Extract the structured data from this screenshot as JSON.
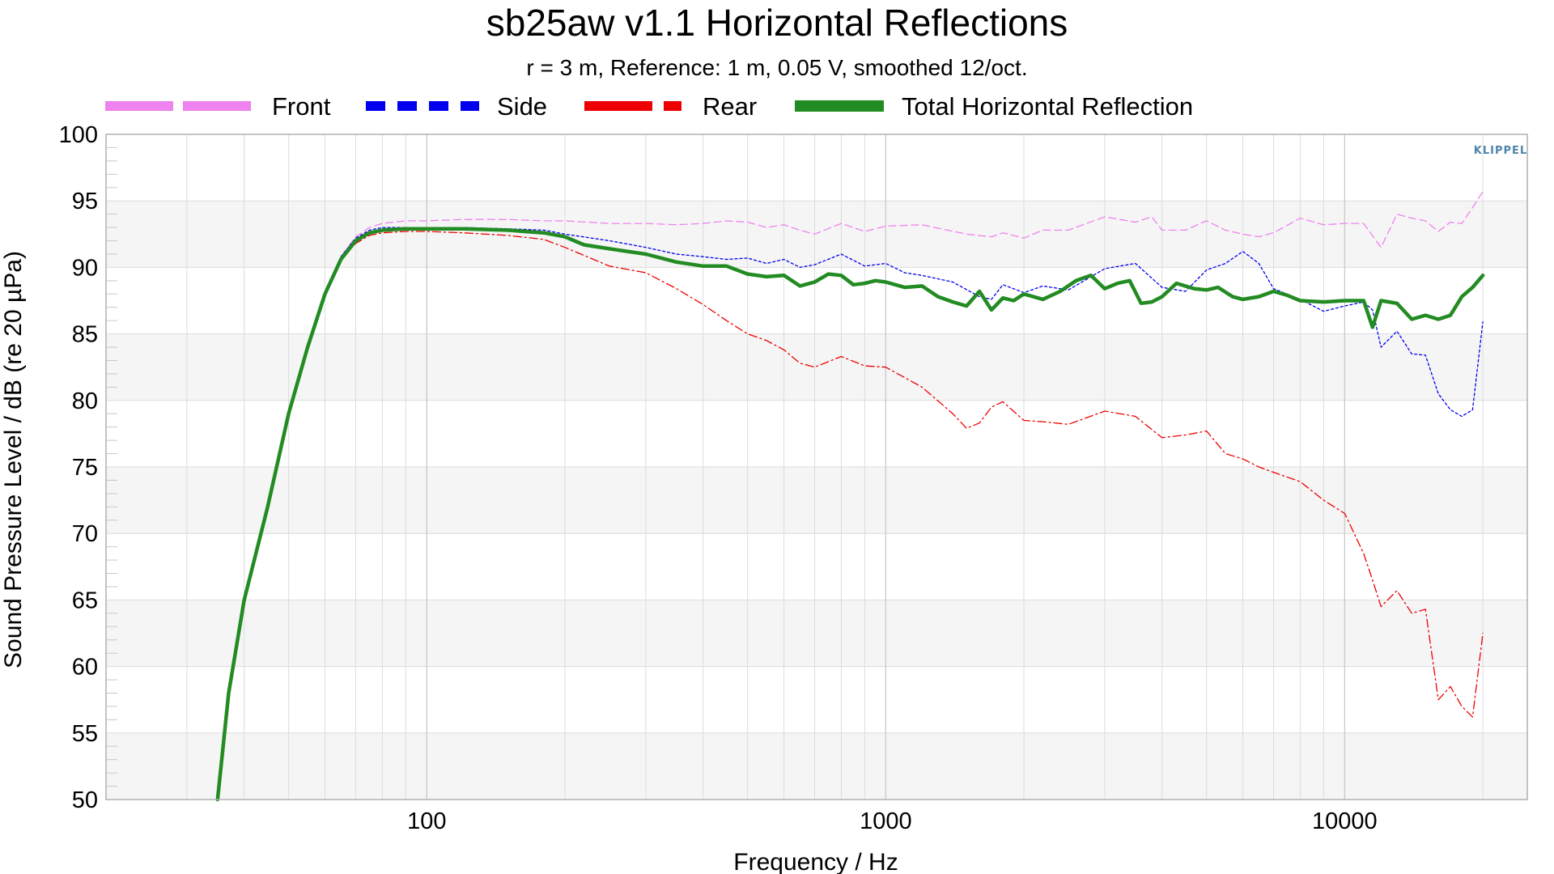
{
  "colors": {
    "front": "#ee82ee",
    "side": "#0000ee",
    "rear": "#ee0000",
    "total": "#228b22",
    "band": "#f5f5f5",
    "grid": "#dcdcdc",
    "brand": "#4f84a9"
  },
  "chart_data": {
    "type": "line",
    "title": "sb25aw v1.1 Horizontal Reflections",
    "subtitle": "r = 3 m,  Reference: 1 m, 0.05 V, smoothed 12/oct.",
    "xlabel": "Frequency / Hz",
    "ylabel": "Sound Pressure Level / dB (re 20 µPa)",
    "xscale": "log",
    "xlim": [
      20,
      25000
    ],
    "ylim": [
      50,
      100
    ],
    "x_ticks": [
      100,
      1000,
      10000
    ],
    "x_tick_labels": [
      "100",
      "1000",
      "10000"
    ],
    "y_ticks": [
      50,
      55,
      60,
      65,
      70,
      75,
      80,
      85,
      90,
      95,
      100
    ],
    "y_tick_labels": [
      "50",
      "55",
      "60",
      "65",
      "70",
      "75",
      "80",
      "85",
      "90",
      "95",
      "100"
    ],
    "grid": true,
    "legend_position": "top",
    "brand_label": "KLIPPEL",
    "series": [
      {
        "name": "Front",
        "style": "dashed",
        "color": "#ee82ee",
        "x": [
          37,
          40,
          45,
          50,
          55,
          60,
          65,
          70,
          75,
          80,
          90,
          100,
          120,
          150,
          180,
          200,
          250,
          300,
          350,
          400,
          450,
          500,
          550,
          600,
          650,
          700,
          800,
          900,
          1000,
          1200,
          1500,
          1700,
          1800,
          2000,
          2200,
          2500,
          3000,
          3500,
          3800,
          4000,
          4500,
          5000,
          5500,
          6000,
          6500,
          7000,
          8000,
          9000,
          10000,
          11000,
          12000,
          13000,
          14000,
          15000,
          16000,
          17000,
          18000,
          19000,
          20000
        ],
        "y": [
          58,
          65,
          72,
          79,
          84,
          88,
          90.8,
          92.3,
          93,
          93.3,
          93.5,
          93.5,
          93.6,
          93.6,
          93.5,
          93.5,
          93.3,
          93.3,
          93.2,
          93.3,
          93.5,
          93.4,
          93,
          93.2,
          92.8,
          92.5,
          93.3,
          92.7,
          93.1,
          93.2,
          92.5,
          92.3,
          92.6,
          92.2,
          92.8,
          92.8,
          93.8,
          93.4,
          93.8,
          92.8,
          92.8,
          93.5,
          92.8,
          92.5,
          92.3,
          92.6,
          93.7,
          93.2,
          93.3,
          93.3,
          91.5,
          94,
          93.7,
          93.5,
          92.7,
          93.4,
          93.3,
          94.5,
          95.7
        ]
      },
      {
        "name": "Side",
        "style": "dotted",
        "color": "#0000ee",
        "x": [
          37,
          40,
          45,
          50,
          55,
          60,
          65,
          70,
          75,
          80,
          90,
          100,
          120,
          150,
          180,
          200,
          250,
          300,
          350,
          400,
          450,
          500,
          550,
          600,
          650,
          700,
          800,
          900,
          1000,
          1100,
          1200,
          1400,
          1600,
          1700,
          1800,
          2000,
          2200,
          2500,
          3000,
          3500,
          4000,
          4500,
          5000,
          5500,
          6000,
          6500,
          7000,
          8000,
          9000,
          10000,
          11000,
          11500,
          12000,
          13000,
          14000,
          15000,
          16000,
          17000,
          18000,
          19000,
          20000
        ],
        "y": [
          58,
          65,
          72,
          79,
          84,
          88,
          90.8,
          92.2,
          92.8,
          93,
          93,
          93,
          93,
          92.9,
          92.8,
          92.5,
          92,
          91.5,
          91,
          90.8,
          90.6,
          90.7,
          90.3,
          90.6,
          90,
          90.2,
          91,
          90.1,
          90.3,
          89.6,
          89.4,
          88.9,
          87.8,
          87.6,
          88.7,
          88.1,
          88.6,
          88.3,
          89.9,
          90.3,
          88.5,
          88.2,
          89.8,
          90.3,
          91.2,
          90.3,
          88.4,
          87.6,
          86.7,
          87.1,
          87.4,
          86.8,
          84,
          85.2,
          83.5,
          83.4,
          80.5,
          79.3,
          78.8,
          79.3,
          85.9
        ]
      },
      {
        "name": "Rear",
        "style": "dashdot",
        "color": "#ee0000",
        "x": [
          37,
          40,
          45,
          50,
          55,
          60,
          65,
          70,
          75,
          80,
          90,
          100,
          120,
          150,
          180,
          200,
          250,
          300,
          350,
          400,
          450,
          500,
          550,
          600,
          650,
          700,
          800,
          900,
          1000,
          1200,
          1400,
          1500,
          1600,
          1700,
          1800,
          2000,
          2200,
          2500,
          3000,
          3500,
          4000,
          4500,
          5000,
          5500,
          6000,
          6500,
          7000,
          8000,
          9000,
          10000,
          11000,
          11500,
          12000,
          13000,
          14000,
          15000,
          16000,
          17000,
          18000,
          19000,
          20000
        ],
        "y": [
          58,
          65,
          72,
          79,
          84,
          88,
          90.6,
          91.8,
          92.4,
          92.6,
          92.7,
          92.7,
          92.6,
          92.4,
          92.1,
          91.5,
          90.1,
          89.6,
          88.4,
          87.2,
          86,
          85,
          84.5,
          83.8,
          82.8,
          82.5,
          83.3,
          82.6,
          82.5,
          81,
          79,
          77.9,
          78.3,
          79.5,
          79.9,
          78.5,
          78.4,
          78.2,
          79.2,
          78.8,
          77.2,
          77.4,
          77.7,
          76,
          75.6,
          75,
          74.6,
          73.9,
          72.5,
          71.5,
          68.5,
          66.5,
          64.5,
          65.7,
          64,
          64.3,
          57.5,
          58.5,
          57,
          56.2,
          62.5
        ]
      },
      {
        "name": "Total Horizontal Reflection",
        "style": "solid",
        "color": "#228b22",
        "x": [
          35,
          36,
          37,
          40,
          45,
          50,
          55,
          60,
          65,
          70,
          75,
          80,
          90,
          100,
          120,
          150,
          180,
          200,
          220,
          250,
          300,
          350,
          400,
          450,
          500,
          550,
          600,
          650,
          700,
          750,
          800,
          850,
          900,
          950,
          1000,
          1100,
          1200,
          1300,
          1400,
          1500,
          1600,
          1700,
          1800,
          1900,
          2000,
          2200,
          2400,
          2600,
          2800,
          3000,
          3200,
          3400,
          3600,
          3800,
          4000,
          4300,
          4700,
          5000,
          5300,
          5700,
          6000,
          6500,
          7000,
          7500,
          8000,
          9000,
          10000,
          11000,
          11500,
          12000,
          13000,
          14000,
          15000,
          16000,
          17000,
          18000,
          19000,
          20000
        ],
        "y": [
          50,
          54,
          58,
          65,
          72,
          79,
          84,
          88,
          90.6,
          92,
          92.6,
          92.8,
          92.9,
          92.9,
          92.9,
          92.8,
          92.6,
          92.3,
          91.7,
          91.4,
          91,
          90.4,
          90.1,
          90.1,
          89.5,
          89.3,
          89.4,
          88.6,
          88.9,
          89.5,
          89.4,
          88.7,
          88.8,
          89,
          88.9,
          88.5,
          88.6,
          87.8,
          87.4,
          87.1,
          88.2,
          86.8,
          87.7,
          87.5,
          88,
          87.6,
          88.2,
          89,
          89.4,
          88.4,
          88.8,
          89,
          87.3,
          87.4,
          87.8,
          88.8,
          88.4,
          88.3,
          88.5,
          87.8,
          87.6,
          87.8,
          88.2,
          87.9,
          87.5,
          87.4,
          87.5,
          87.5,
          85.5,
          87.5,
          87.3,
          86.1,
          86.4,
          86.1,
          86.4,
          87.8,
          88.5,
          89.4
        ]
      }
    ]
  }
}
